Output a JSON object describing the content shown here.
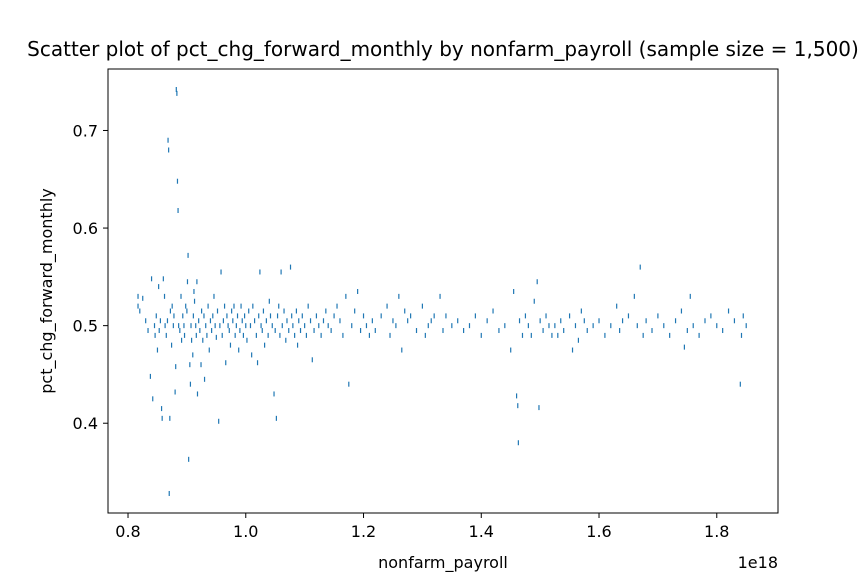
{
  "chart_data": {
    "type": "scatter",
    "title": "Scatter plot of pct_chg_forward_monthly by nonfarm_payroll (sample size = 1,500)",
    "xlabel": "nonfarm_payroll",
    "ylabel": "pct_chg_forward_monthly",
    "x_offset_label": "1e18",
    "xlim": [
      0.766,
      1.904
    ],
    "ylim": [
      0.308,
      0.763
    ],
    "xticks": [
      0.8,
      1.0,
      1.2,
      1.4,
      1.6,
      1.8
    ],
    "xtick_labels": [
      "0.8",
      "1.0",
      "1.2",
      "1.4",
      "1.6",
      "1.8"
    ],
    "yticks": [
      0.4,
      0.5,
      0.6,
      0.7
    ],
    "ytick_labels": [
      "0.4",
      "0.5",
      "0.6",
      "0.7"
    ],
    "grid": false,
    "marker_color": "#1f77b4",
    "series": [
      {
        "values": [
          [
            0.817,
            0.52
          ],
          [
            0.817,
            0.53
          ],
          [
            0.82,
            0.515
          ],
          [
            0.825,
            0.528
          ],
          [
            0.83,
            0.505
          ],
          [
            0.834,
            0.495
          ],
          [
            0.838,
            0.448
          ],
          [
            0.84,
            0.548
          ],
          [
            0.842,
            0.425
          ],
          [
            0.845,
            0.5
          ],
          [
            0.846,
            0.49
          ],
          [
            0.848,
            0.51
          ],
          [
            0.85,
            0.475
          ],
          [
            0.852,
            0.54
          ],
          [
            0.853,
            0.495
          ],
          [
            0.855,
            0.505
          ],
          [
            0.857,
            0.415
          ],
          [
            0.858,
            0.405
          ],
          [
            0.86,
            0.548
          ],
          [
            0.862,
            0.53
          ],
          [
            0.863,
            0.5
          ],
          [
            0.865,
            0.49
          ],
          [
            0.867,
            0.505
          ],
          [
            0.868,
            0.69
          ],
          [
            0.869,
            0.68
          ],
          [
            0.87,
            0.328
          ],
          [
            0.871,
            0.405
          ],
          [
            0.872,
            0.515
          ],
          [
            0.874,
            0.48
          ],
          [
            0.875,
            0.52
          ],
          [
            0.877,
            0.5
          ],
          [
            0.878,
            0.51
          ],
          [
            0.88,
            0.432
          ],
          [
            0.881,
            0.458
          ],
          [
            0.882,
            0.742
          ],
          [
            0.883,
            0.738
          ],
          [
            0.884,
            0.648
          ],
          [
            0.885,
            0.618
          ],
          [
            0.886,
            0.5
          ],
          [
            0.888,
            0.495
          ],
          [
            0.89,
            0.53
          ],
          [
            0.891,
            0.485
          ],
          [
            0.893,
            0.51
          ],
          [
            0.895,
            0.5
          ],
          [
            0.896,
            0.49
          ],
          [
            0.898,
            0.52
          ],
          [
            0.9,
            0.515
          ],
          [
            0.901,
            0.545
          ],
          [
            0.902,
            0.572
          ],
          [
            0.903,
            0.363
          ],
          [
            0.905,
            0.46
          ],
          [
            0.906,
            0.44
          ],
          [
            0.907,
            0.5
          ],
          [
            0.908,
            0.485
          ],
          [
            0.91,
            0.47
          ],
          [
            0.911,
            0.51
          ],
          [
            0.912,
            0.535
          ],
          [
            0.913,
            0.525
          ],
          [
            0.915,
            0.5
          ],
          [
            0.916,
            0.49
          ],
          [
            0.917,
            0.545
          ],
          [
            0.918,
            0.43
          ],
          [
            0.92,
            0.505
          ],
          [
            0.922,
            0.495
          ],
          [
            0.924,
            0.46
          ],
          [
            0.925,
            0.515
          ],
          [
            0.927,
            0.485
          ],
          [
            0.929,
            0.51
          ],
          [
            0.93,
            0.445
          ],
          [
            0.932,
            0.5
          ],
          [
            0.934,
            0.49
          ],
          [
            0.936,
            0.52
          ],
          [
            0.938,
            0.475
          ],
          [
            0.94,
            0.505
          ],
          [
            0.942,
            0.495
          ],
          [
            0.944,
            0.51
          ],
          [
            0.946,
            0.53
          ],
          [
            0.948,
            0.5
          ],
          [
            0.95,
            0.488
          ],
          [
            0.952,
            0.515
          ],
          [
            0.954,
            0.402
          ],
          [
            0.956,
            0.5
          ],
          [
            0.958,
            0.555
          ],
          [
            0.96,
            0.49
          ],
          [
            0.962,
            0.505
          ],
          [
            0.964,
            0.52
          ],
          [
            0.966,
            0.462
          ],
          [
            0.968,
            0.51
          ],
          [
            0.97,
            0.5
          ],
          [
            0.972,
            0.495
          ],
          [
            0.974,
            0.48
          ],
          [
            0.976,
            0.515
          ],
          [
            0.978,
            0.505
          ],
          [
            0.98,
            0.52
          ],
          [
            0.982,
            0.49
          ],
          [
            0.984,
            0.5
          ],
          [
            0.986,
            0.51
          ],
          [
            0.988,
            0.475
          ],
          [
            0.99,
            0.495
          ],
          [
            0.992,
            0.52
          ],
          [
            0.994,
            0.505
          ],
          [
            0.996,
            0.49
          ],
          [
            0.998,
            0.51
          ],
          [
            1.0,
            0.5
          ],
          [
            1.002,
            0.485
          ],
          [
            1.005,
            0.515
          ],
          [
            1.008,
            0.5
          ],
          [
            1.01,
            0.47
          ],
          [
            1.012,
            0.52
          ],
          [
            1.015,
            0.505
          ],
          [
            1.018,
            0.49
          ],
          [
            1.02,
            0.462
          ],
          [
            1.022,
            0.51
          ],
          [
            1.024,
            0.555
          ],
          [
            1.026,
            0.5
          ],
          [
            1.028,
            0.495
          ],
          [
            1.03,
            0.515
          ],
          [
            1.032,
            0.48
          ],
          [
            1.035,
            0.505
          ],
          [
            1.038,
            0.49
          ],
          [
            1.04,
            0.525
          ],
          [
            1.042,
            0.51
          ],
          [
            1.045,
            0.5
          ],
          [
            1.048,
            0.43
          ],
          [
            1.05,
            0.495
          ],
          [
            1.052,
            0.405
          ],
          [
            1.054,
            0.51
          ],
          [
            1.056,
            0.52
          ],
          [
            1.058,
            0.49
          ],
          [
            1.06,
            0.555
          ],
          [
            1.062,
            0.5
          ],
          [
            1.065,
            0.515
          ],
          [
            1.068,
            0.485
          ],
          [
            1.07,
            0.505
          ],
          [
            1.073,
            0.495
          ],
          [
            1.076,
            0.56
          ],
          [
            1.078,
            0.51
          ],
          [
            1.08,
            0.5
          ],
          [
            1.083,
            0.49
          ],
          [
            1.086,
            0.515
          ],
          [
            1.088,
            0.48
          ],
          [
            1.09,
            0.505
          ],
          [
            1.093,
            0.495
          ],
          [
            1.096,
            0.51
          ],
          [
            1.1,
            0.5
          ],
          [
            1.103,
            0.49
          ],
          [
            1.106,
            0.52
          ],
          [
            1.11,
            0.505
          ],
          [
            1.113,
            0.465
          ],
          [
            1.116,
            0.495
          ],
          [
            1.12,
            0.51
          ],
          [
            1.124,
            0.5
          ],
          [
            1.128,
            0.49
          ],
          [
            1.132,
            0.505
          ],
          [
            1.136,
            0.515
          ],
          [
            1.14,
            0.5
          ],
          [
            1.145,
            0.495
          ],
          [
            1.15,
            0.51
          ],
          [
            1.155,
            0.52
          ],
          [
            1.16,
            0.505
          ],
          [
            1.165,
            0.49
          ],
          [
            1.17,
            0.53
          ],
          [
            1.175,
            0.44
          ],
          [
            1.18,
            0.5
          ],
          [
            1.185,
            0.515
          ],
          [
            1.19,
            0.535
          ],
          [
            1.195,
            0.495
          ],
          [
            1.2,
            0.51
          ],
          [
            1.205,
            0.5
          ],
          [
            1.21,
            0.49
          ],
          [
            1.215,
            0.505
          ],
          [
            1.22,
            0.495
          ],
          [
            1.23,
            0.51
          ],
          [
            1.24,
            0.52
          ],
          [
            1.245,
            0.49
          ],
          [
            1.25,
            0.505
          ],
          [
            1.255,
            0.5
          ],
          [
            1.26,
            0.53
          ],
          [
            1.265,
            0.475
          ],
          [
            1.27,
            0.515
          ],
          [
            1.275,
            0.505
          ],
          [
            1.28,
            0.51
          ],
          [
            1.29,
            0.495
          ],
          [
            1.3,
            0.52
          ],
          [
            1.305,
            0.49
          ],
          [
            1.31,
            0.5
          ],
          [
            1.315,
            0.505
          ],
          [
            1.32,
            0.51
          ],
          [
            1.33,
            0.53
          ],
          [
            1.335,
            0.495
          ],
          [
            1.34,
            0.51
          ],
          [
            1.35,
            0.5
          ],
          [
            1.36,
            0.505
          ],
          [
            1.37,
            0.495
          ],
          [
            1.38,
            0.5
          ],
          [
            1.39,
            0.51
          ],
          [
            1.4,
            0.49
          ],
          [
            1.41,
            0.505
          ],
          [
            1.42,
            0.515
          ],
          [
            1.43,
            0.495
          ],
          [
            1.44,
            0.5
          ],
          [
            1.45,
            0.475
          ],
          [
            1.455,
            0.535
          ],
          [
            1.46,
            0.428
          ],
          [
            1.462,
            0.418
          ],
          [
            1.463,
            0.38
          ],
          [
            1.465,
            0.505
          ],
          [
            1.47,
            0.49
          ],
          [
            1.475,
            0.51
          ],
          [
            1.48,
            0.5
          ],
          [
            1.485,
            0.49
          ],
          [
            1.49,
            0.525
          ],
          [
            1.495,
            0.545
          ],
          [
            1.498,
            0.416
          ],
          [
            1.5,
            0.505
          ],
          [
            1.505,
            0.495
          ],
          [
            1.51,
            0.51
          ],
          [
            1.515,
            0.5
          ],
          [
            1.52,
            0.49
          ],
          [
            1.525,
            0.5
          ],
          [
            1.53,
            0.49
          ],
          [
            1.535,
            0.505
          ],
          [
            1.54,
            0.495
          ],
          [
            1.55,
            0.51
          ],
          [
            1.555,
            0.475
          ],
          [
            1.56,
            0.5
          ],
          [
            1.565,
            0.485
          ],
          [
            1.57,
            0.515
          ],
          [
            1.575,
            0.505
          ],
          [
            1.58,
            0.495
          ],
          [
            1.59,
            0.5
          ],
          [
            1.6,
            0.505
          ],
          [
            1.61,
            0.49
          ],
          [
            1.62,
            0.5
          ],
          [
            1.63,
            0.52
          ],
          [
            1.635,
            0.495
          ],
          [
            1.64,
            0.505
          ],
          [
            1.65,
            0.51
          ],
          [
            1.66,
            0.53
          ],
          [
            1.665,
            0.5
          ],
          [
            1.67,
            0.56
          ],
          [
            1.675,
            0.49
          ],
          [
            1.68,
            0.505
          ],
          [
            1.69,
            0.495
          ],
          [
            1.7,
            0.51
          ],
          [
            1.71,
            0.5
          ],
          [
            1.72,
            0.49
          ],
          [
            1.73,
            0.505
          ],
          [
            1.74,
            0.515
          ],
          [
            1.745,
            0.478
          ],
          [
            1.75,
            0.495
          ],
          [
            1.755,
            0.53
          ],
          [
            1.76,
            0.5
          ],
          [
            1.77,
            0.49
          ],
          [
            1.78,
            0.505
          ],
          [
            1.79,
            0.51
          ],
          [
            1.8,
            0.5
          ],
          [
            1.81,
            0.495
          ],
          [
            1.82,
            0.515
          ],
          [
            1.83,
            0.505
          ],
          [
            1.84,
            0.44
          ],
          [
            1.842,
            0.49
          ],
          [
            1.845,
            0.51
          ],
          [
            1.85,
            0.5
          ]
        ]
      }
    ]
  }
}
